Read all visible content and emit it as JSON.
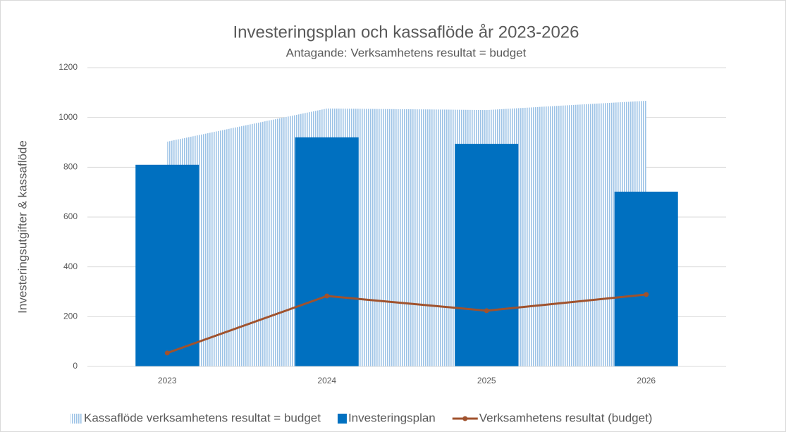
{
  "chart_data": {
    "type": "combo",
    "title": "Investeringsplan och kassaflöde år 2023-2026",
    "subtitle": "Antagande: Verksamhetens resultat = budget",
    "y_label": "Investeringsutgifter & kassaflöde",
    "categories": [
      "2023",
      "2024",
      "2025",
      "2026"
    ],
    "series": [
      {
        "name": "Kassaflöde verksamhetens resultat = budget",
        "type": "area",
        "color": "#9dc3e6",
        "values": [
          903,
          1036,
          1030,
          1067
        ]
      },
      {
        "name": "Investeringsplan",
        "type": "bar",
        "color": "#0070c0",
        "values": [
          810,
          920,
          894,
          702
        ]
      },
      {
        "name": "Verksamhetens resultat (budget)",
        "type": "line",
        "color": "#a0522d",
        "values": [
          54,
          283,
          224,
          289
        ]
      }
    ],
    "ylim": [
      0,
      1200
    ],
    "yticks": [
      0,
      200,
      400,
      600,
      800,
      1000,
      1200
    ],
    "grid": true,
    "legend": "bottom"
  }
}
